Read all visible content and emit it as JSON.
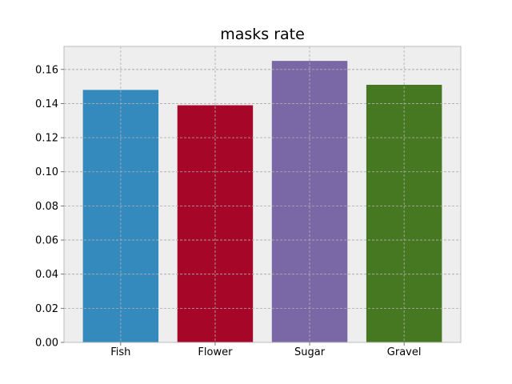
{
  "chart_data": {
    "type": "bar",
    "title": "masks rate",
    "xlabel": "",
    "ylabel": "",
    "categories": [
      "Fish",
      "Flower",
      "Sugar",
      "Gravel"
    ],
    "values": [
      0.148,
      0.139,
      0.165,
      0.151
    ],
    "colors": [
      "#348abd",
      "#a60628",
      "#7a68a6",
      "#467821"
    ],
    "ylim": [
      0,
      0.1735
    ],
    "yticks": [
      0.0,
      0.02,
      0.04,
      0.06,
      0.08,
      0.1,
      0.12,
      0.14,
      0.16
    ],
    "ytick_labels": [
      "0.00",
      "0.02",
      "0.04",
      "0.06",
      "0.08",
      "0.10",
      "0.12",
      "0.14",
      "0.16"
    ],
    "grid": true,
    "background": "#eeeeee",
    "grid_color": "#b0b0b0"
  }
}
